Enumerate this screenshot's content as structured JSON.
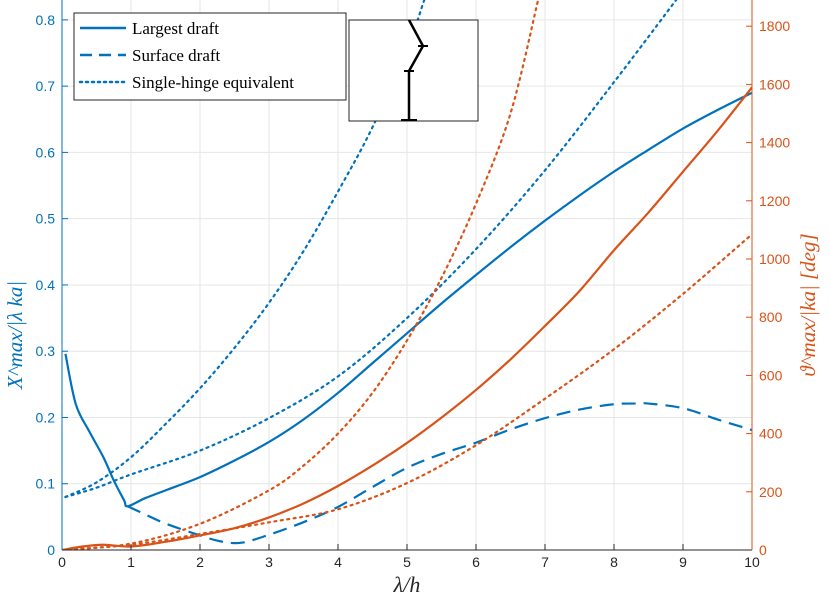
{
  "chart_data": {
    "type": "line",
    "xlabel": "λ/h",
    "ylabel_left": "X^max/|λ ka|",
    "ylabel_right": "ϑ^max/|ka| [deg]",
    "xlim": [
      0,
      10
    ],
    "ylim_left": [
      0,
      0.83
    ],
    "ylim_right": [
      0,
      1890
    ],
    "x_ticks": [
      "0",
      "1",
      "2",
      "3",
      "4",
      "5",
      "6",
      "7",
      "8",
      "9",
      "10"
    ],
    "y_left_ticks": [
      "0",
      "0.1",
      "0.2",
      "0.3",
      "0.4",
      "0.5",
      "0.6",
      "0.7",
      "0.8"
    ],
    "y_right_ticks": [
      "0",
      "200",
      "400",
      "600",
      "800",
      "1000",
      "1200",
      "1400",
      "1600",
      "1800"
    ],
    "grid": true,
    "legend_position": "top-left",
    "legend": [
      {
        "label": "Largest draft",
        "style": "solid"
      },
      {
        "label": "Surface draft",
        "style": "dashed"
      },
      {
        "label": "Single-hinge equivalent",
        "style": "dotted"
      }
    ],
    "colors": {
      "left_axis": "#0072BD",
      "right_axis": "#D95319"
    },
    "series": [
      {
        "axis": "left",
        "style": "solid",
        "x": [
          0.05,
          0.2,
          0.4,
          0.6,
          0.75,
          0.9,
          0.95,
          1.2,
          1.5,
          2,
          2.5,
          3,
          3.5,
          4,
          4.5,
          5,
          5.5,
          6,
          6.5,
          7,
          7.5,
          8,
          8.5,
          9,
          9.5,
          10
        ],
        "y": [
          0.296,
          0.22,
          0.178,
          0.14,
          0.105,
          0.075,
          0.066,
          0.078,
          0.09,
          0.11,
          0.135,
          0.163,
          0.197,
          0.237,
          0.282,
          0.327,
          0.372,
          0.415,
          0.457,
          0.497,
          0.535,
          0.571,
          0.604,
          0.636,
          0.664,
          0.69
        ]
      },
      {
        "axis": "left",
        "style": "dashed",
        "x": [
          0.95,
          1.2,
          1.5,
          2,
          2.3,
          2.6,
          3,
          3.5,
          4,
          4.5,
          5,
          5.5,
          6,
          6.5,
          7,
          7.5,
          8,
          8.3,
          8.5,
          9,
          9.5,
          10
        ],
        "y": [
          0.066,
          0.054,
          0.04,
          0.022,
          0.013,
          0.011,
          0.023,
          0.042,
          0.065,
          0.095,
          0.124,
          0.145,
          0.162,
          0.182,
          0.199,
          0.212,
          0.22,
          0.221,
          0.221,
          0.214,
          0.197,
          0.181
        ]
      },
      {
        "axis": "left",
        "style": "dotted",
        "x": [
          0.05,
          0.5,
          1,
          1.5,
          2,
          2.5,
          3,
          3.5,
          4,
          4.5,
          5,
          5.25
        ],
        "y": [
          0.08,
          0.102,
          0.14,
          0.19,
          0.244,
          0.305,
          0.373,
          0.451,
          0.541,
          0.638,
          0.756,
          0.83
        ]
      },
      {
        "axis": "left",
        "style": "dotted",
        "x": [
          0.05,
          0.5,
          1,
          2,
          3,
          4,
          5,
          6,
          7,
          8,
          8.9
        ],
        "y": [
          0.08,
          0.094,
          0.114,
          0.15,
          0.199,
          0.262,
          0.35,
          0.454,
          0.573,
          0.706,
          0.83
        ]
      },
      {
        "axis": "right",
        "style": "solid",
        "x": [
          0,
          0.3,
          0.6,
          1,
          1.5,
          2,
          2.5,
          3,
          3.5,
          4,
          4.5,
          5,
          5.5,
          6,
          6.5,
          7,
          7.5,
          8,
          8.5,
          9,
          9.5,
          10
        ],
        "y": [
          0,
          12,
          18,
          12,
          28,
          50,
          75,
          112,
          160,
          220,
          290,
          368,
          455,
          550,
          655,
          770,
          890,
          1030,
          1160,
          1300,
          1440,
          1590
        ]
      },
      {
        "axis": "right",
        "style": "dotted",
        "x": [
          0,
          1,
          2,
          3,
          3.5,
          4,
          4.5,
          5,
          5.5,
          6,
          6.5,
          6.9
        ],
        "y": [
          0,
          22,
          90,
          205,
          290,
          400,
          540,
          720,
          935,
          1190,
          1500,
          1890
        ]
      },
      {
        "axis": "right",
        "style": "dotted",
        "x": [
          0,
          1,
          2,
          3,
          4,
          5,
          6,
          7,
          8,
          9,
          10
        ],
        "y": [
          0,
          18,
          55,
          95,
          140,
          230,
          360,
          520,
          690,
          880,
          1085
        ]
      }
    ],
    "inset": {
      "type": "hinged-body-schematic"
    }
  }
}
